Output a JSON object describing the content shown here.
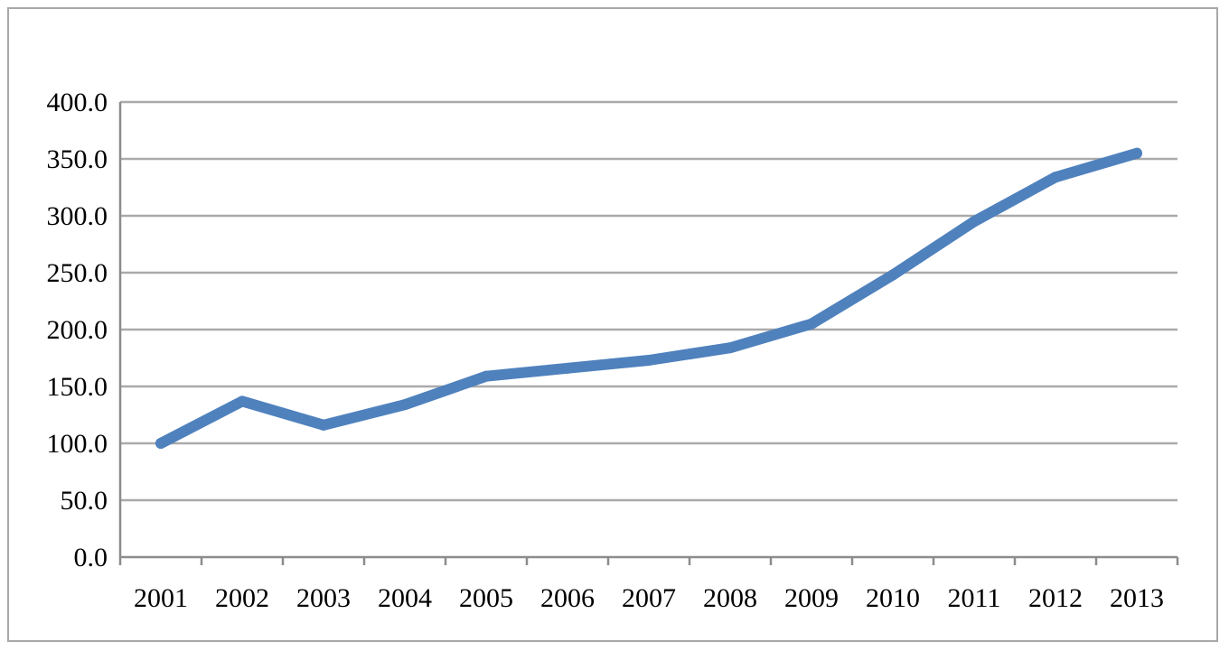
{
  "chart_data": {
    "type": "line",
    "title": "",
    "xlabel": "",
    "ylabel": "",
    "categories": [
      "2001",
      "2002",
      "2003",
      "2004",
      "2005",
      "2006",
      "2007",
      "2008",
      "2009",
      "2010",
      "2011",
      "2012",
      "2013"
    ],
    "series": [
      {
        "values": [
          100.0,
          137.0,
          116.0,
          134.0,
          159.0,
          166.0,
          173.0,
          184.0,
          205.0,
          248.0,
          295.0,
          334.0,
          355.0
        ],
        "color": "#4f81bd"
      }
    ],
    "ylim": [
      0,
      400
    ],
    "yticks": [
      "0.0",
      "50.0",
      "100.0",
      "150.0",
      "200.0",
      "250.0",
      "300.0",
      "350.0",
      "400.0"
    ],
    "grid": true,
    "legend": "none"
  }
}
